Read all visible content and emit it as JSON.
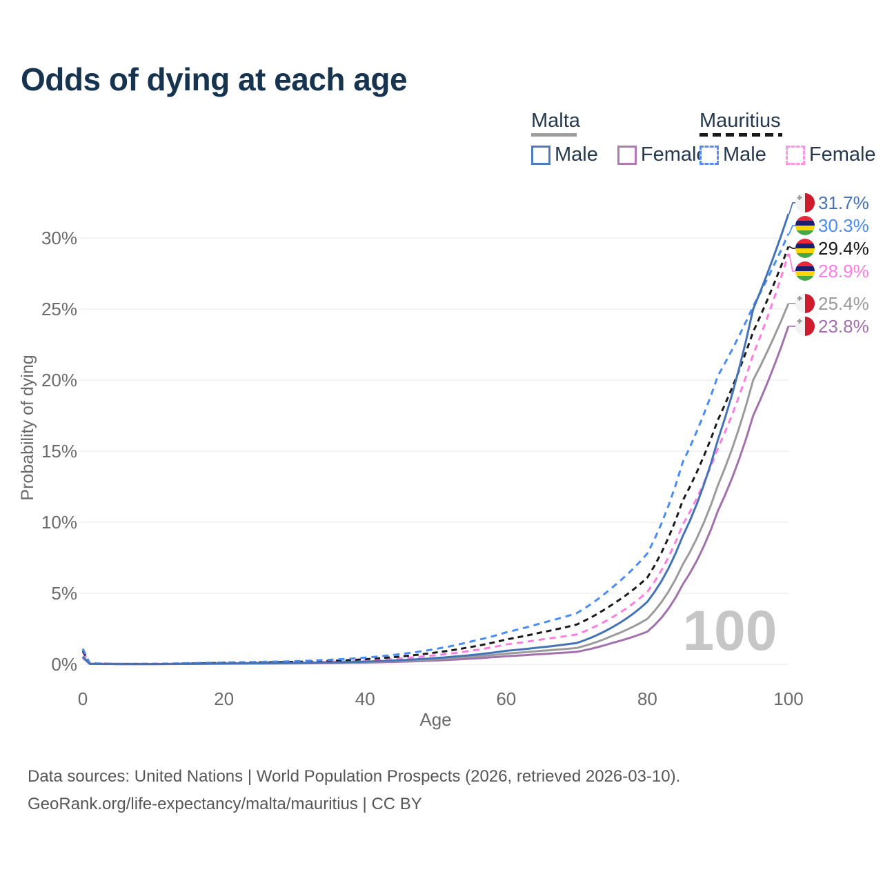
{
  "title": "Odds of dying at each age",
  "legend": {
    "groups": [
      {
        "label": "Malta",
        "line_style": "solid",
        "underline_color": "#9e9e9e",
        "items": [
          {
            "label": "Male",
            "color": "#4c7dbf"
          },
          {
            "label": "Female",
            "color": "#b277b5"
          }
        ]
      },
      {
        "label": "Mauritius",
        "line_style": "dashed",
        "underline_color": "#1a1a1a",
        "items": [
          {
            "label": "Male",
            "color": "#5a8cf0"
          },
          {
            "label": "Female",
            "color": "#ff93e6"
          }
        ]
      }
    ]
  },
  "watermark_age": "100",
  "chart_data": {
    "type": "line",
    "title": "Odds of dying at each age",
    "xlabel": "Age",
    "ylabel": "Probability of dying",
    "xlim": [
      0,
      100
    ],
    "ylim_percent": [
      0,
      33
    ],
    "grid": "horizontal-only",
    "x_ticks": [
      0,
      20,
      40,
      60,
      80,
      100
    ],
    "y_ticks": [
      "0%",
      "5%",
      "10%",
      "15%",
      "20%",
      "25%",
      "30%"
    ],
    "y_tick_values": [
      0,
      5,
      10,
      15,
      20,
      25,
      30
    ],
    "ages": [
      0,
      1,
      5,
      10,
      15,
      20,
      25,
      30,
      35,
      40,
      45,
      50,
      55,
      60,
      65,
      70,
      75,
      80,
      85,
      90,
      95,
      100
    ],
    "series": [
      {
        "name": "Malta Male",
        "country": "malta",
        "sex": "male",
        "style": "solid",
        "color": "#4373b5",
        "dash": null,
        "end_label": "31.7%",
        "flag": "malta",
        "values_percent": [
          0.55,
          0.03,
          0.02,
          0.02,
          0.04,
          0.06,
          0.08,
          0.1,
          0.13,
          0.19,
          0.29,
          0.44,
          0.65,
          0.95,
          1.2,
          1.5,
          2.6,
          4.4,
          9.0,
          15.8,
          25.0,
          31.7
        ]
      },
      {
        "name": "Mauritius Male",
        "country": "mauritius",
        "sex": "male",
        "style": "dashed",
        "color": "#4a8cf5",
        "dash": "9 7",
        "end_label": "30.3%",
        "flag": "mauritius",
        "values_percent": [
          1.1,
          0.07,
          0.04,
          0.04,
          0.08,
          0.13,
          0.17,
          0.22,
          0.32,
          0.47,
          0.72,
          1.08,
          1.6,
          2.25,
          2.9,
          3.6,
          5.4,
          7.8,
          14.2,
          20.3,
          25.2,
          30.3
        ]
      },
      {
        "name": "Mauritius Both sexes",
        "country": "mauritius",
        "sex": "both",
        "style": "dashed",
        "color": "#1a1a1a",
        "dash": "8 6",
        "end_label": "29.4%",
        "flag": "mauritius",
        "values_percent": [
          0.95,
          0.06,
          0.03,
          0.03,
          0.06,
          0.1,
          0.13,
          0.17,
          0.24,
          0.36,
          0.55,
          0.83,
          1.22,
          1.75,
          2.25,
          2.8,
          4.2,
          6.1,
          11.5,
          17.2,
          23.4,
          29.4
        ]
      },
      {
        "name": "Mauritius Female",
        "country": "mauritius",
        "sex": "female",
        "style": "dashed",
        "color": "#ff7ce0",
        "dash": "9 7",
        "end_label": "28.9%",
        "flag": "mauritius",
        "values_percent": [
          0.85,
          0.05,
          0.03,
          0.03,
          0.05,
          0.08,
          0.1,
          0.13,
          0.18,
          0.27,
          0.42,
          0.64,
          0.95,
          1.4,
          1.75,
          2.1,
          3.3,
          5.1,
          9.8,
          15.2,
          21.8,
          28.9
        ]
      },
      {
        "name": "Malta Both sexes",
        "country": "malta",
        "sex": "both",
        "style": "solid",
        "color": "#9b9b9b",
        "dash": null,
        "end_label": "25.4%",
        "flag": "malta",
        "values_percent": [
          0.5,
          0.03,
          0.02,
          0.02,
          0.03,
          0.05,
          0.065,
          0.085,
          0.11,
          0.16,
          0.24,
          0.36,
          0.53,
          0.75,
          0.95,
          1.15,
          2.0,
          3.2,
          7.0,
          12.6,
          20.0,
          25.4
        ]
      },
      {
        "name": "Malta Female",
        "country": "malta",
        "sex": "female",
        "style": "solid",
        "color": "#a271ad",
        "dash": null,
        "end_label": "23.8%",
        "flag": "malta",
        "values_percent": [
          0.45,
          0.025,
          0.015,
          0.015,
          0.025,
          0.04,
          0.05,
          0.065,
          0.085,
          0.12,
          0.18,
          0.27,
          0.4,
          0.57,
          0.72,
          0.88,
          1.5,
          2.3,
          5.6,
          10.8,
          17.5,
          23.8
        ]
      }
    ],
    "colors": {
      "grid": "#ececec",
      "axis_text": "#6a6a6a",
      "watermark": "#c6c6c6",
      "title": "#16334f",
      "flag_malta_red": "#cf1b2b",
      "flag_malta_white": "#f2f2f2",
      "flag_mauritius_red": "#EA2839",
      "flag_mauritius_blue": "#1A206D",
      "flag_mauritius_yellow": "#FFD500",
      "flag_mauritius_green": "#46A746"
    }
  },
  "footer": {
    "line1": "Data sources: United Nations | World Population Prospects (2026, retrieved 2026-03-10).",
    "line2": "GeoRank.org/life-expectancy/malta/mauritius | CC BY"
  }
}
